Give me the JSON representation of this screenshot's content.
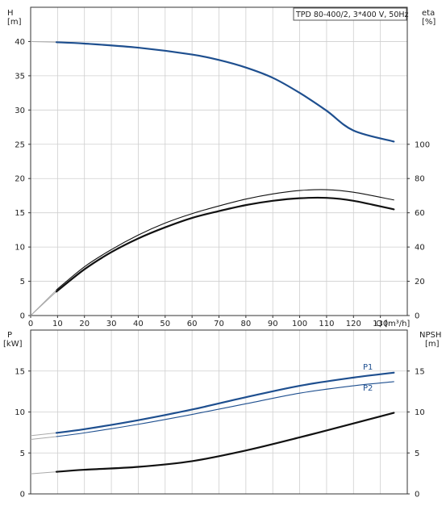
{
  "chart_data": [
    {
      "type": "line",
      "legend_text": "TPD 80-400/2, 3*400 V, 50Hz",
      "legend_position": "top-right",
      "grid": true,
      "x_axis": {
        "label": "Q [m³/h]",
        "range": [
          0,
          140
        ],
        "ticks": [
          0,
          10,
          20,
          30,
          40,
          50,
          60,
          70,
          80,
          90,
          100,
          110,
          120,
          130
        ]
      },
      "y_axis_left": {
        "label_line1": "H",
        "label_line2": "[m]",
        "range": [
          0,
          45
        ],
        "ticks": [
          0,
          5,
          10,
          15,
          20,
          25,
          30,
          35,
          40
        ]
      },
      "y_axis_right": {
        "label_line1": "eta",
        "label_line2": "[%]",
        "range": [
          0,
          180
        ],
        "ticks": [
          0,
          20,
          40,
          60,
          80,
          100
        ]
      },
      "series": [
        {
          "key": "head",
          "axis": "left",
          "color": "#1e4f8f",
          "width": 2.2,
          "x": [
            0,
            9.6,
            20,
            40,
            60,
            70,
            80,
            90,
            100,
            110,
            120,
            135
          ],
          "y": [
            40,
            39.9,
            39.7,
            39.1,
            38.1,
            37.3,
            36.2,
            34.7,
            32.5,
            29.9,
            27,
            25.4
          ],
          "dashed_prefix_until": 9.6
        },
        {
          "key": "eta-total",
          "axis": "right",
          "color": "#111111",
          "width": 2.2,
          "x": [
            0,
            9.6,
            20,
            30,
            40,
            50,
            60,
            70,
            80,
            90,
            100,
            110,
            120,
            135
          ],
          "y": [
            0,
            14,
            27,
            37,
            45,
            51.5,
            57,
            61,
            64.5,
            67,
            68.5,
            68.7,
            67,
            62
          ],
          "dashed_prefix_until": 9.6
        },
        {
          "key": "eta-hydraulic",
          "axis": "right",
          "color": "#111111",
          "width": 1.1,
          "x": [
            0,
            9.6,
            20,
            30,
            40,
            50,
            60,
            70,
            80,
            90,
            100,
            110,
            120,
            135
          ],
          "y": [
            0,
            15,
            28.5,
            38.5,
            47,
            54,
            59.5,
            64,
            68,
            71,
            73,
            73.5,
            72,
            67.5
          ],
          "dashed_prefix_until": 9.6
        }
      ]
    },
    {
      "type": "line",
      "grid": true,
      "x_axis": {
        "range": [
          0,
          140
        ],
        "ticks": [
          0,
          10,
          20,
          30,
          40,
          50,
          60,
          70,
          80,
          90,
          100,
          110,
          120,
          130
        ]
      },
      "y_axis_left": {
        "label_line1": "P",
        "label_line2": "[kW]",
        "range": [
          0,
          20
        ],
        "ticks": [
          0,
          5,
          10,
          15
        ]
      },
      "y_axis_right": {
        "label_line1": "NPSH",
        "label_line2": "[m]",
        "range": [
          0,
          20
        ],
        "ticks": [
          0,
          5,
          10,
          15
        ]
      },
      "series": [
        {
          "name": "P1",
          "axis": "left",
          "color": "#1e4f8f",
          "width": 2.2,
          "x": [
            0,
            9.6,
            20,
            40,
            60,
            80,
            100,
            120,
            135
          ],
          "y": [
            7.1,
            7.45,
            7.9,
            9,
            10.3,
            11.8,
            13.2,
            14.2,
            14.8
          ],
          "dashed_prefix_until": 9.6
        },
        {
          "name": "P2",
          "axis": "left",
          "color": "#1e4f8f",
          "width": 1.1,
          "x": [
            0,
            9.6,
            20,
            40,
            60,
            80,
            100,
            120,
            135
          ],
          "y": [
            6.65,
            7,
            7.45,
            8.5,
            9.7,
            11,
            12.3,
            13.2,
            13.7
          ],
          "dashed_prefix_until": 9.6
        },
        {
          "key": "npsh",
          "axis": "right",
          "color": "#111111",
          "width": 2.2,
          "x": [
            0,
            9.6,
            20,
            40,
            60,
            80,
            100,
            120,
            135
          ],
          "y": [
            2.45,
            2.7,
            2.95,
            3.3,
            4,
            5.3,
            6.9,
            8.6,
            9.9
          ],
          "dashed_prefix_until": 9.6
        }
      ]
    }
  ]
}
